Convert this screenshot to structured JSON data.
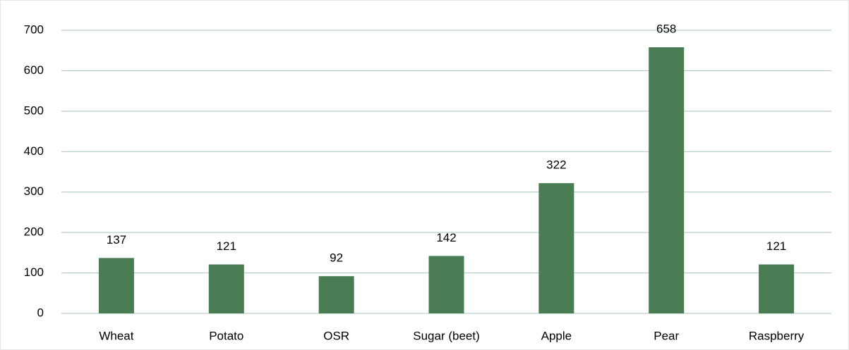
{
  "chart_data": {
    "type": "bar",
    "categories": [
      "Wheat",
      "Potato",
      "OSR",
      "Sugar (beet)",
      "Apple",
      "Pear",
      "Raspberry"
    ],
    "values": [
      137,
      121,
      92,
      142,
      322,
      658,
      121
    ],
    "color": "#4a7c54",
    "ylim": [
      0,
      700
    ],
    "yticks": [
      0,
      100,
      200,
      300,
      400,
      500,
      600,
      700
    ],
    "grid": true
  }
}
